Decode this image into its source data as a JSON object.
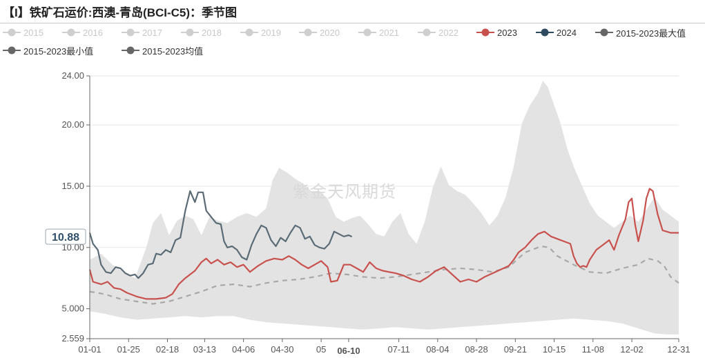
{
  "title": "【I】铁矿石运价:西澳-青岛(BCI-C5)：季节图",
  "watermark": "紫金天风期货",
  "legend": [
    {
      "label": "2015",
      "color": "#cfcfcf",
      "active": false
    },
    {
      "label": "2016",
      "color": "#cfcfcf",
      "active": false
    },
    {
      "label": "2017",
      "color": "#cfcfcf",
      "active": false
    },
    {
      "label": "2018",
      "color": "#cfcfcf",
      "active": false
    },
    {
      "label": "2019",
      "color": "#cfcfcf",
      "active": false
    },
    {
      "label": "2020",
      "color": "#cfcfcf",
      "active": false
    },
    {
      "label": "2021",
      "color": "#cfcfcf",
      "active": false
    },
    {
      "label": "2022",
      "color": "#cfcfcf",
      "active": false
    },
    {
      "label": "2023",
      "color": "#c8504d",
      "active": true
    },
    {
      "label": "2024",
      "color": "#2e4a5e",
      "active": true
    },
    {
      "label": "2015-2023最大值",
      "color": "#666666",
      "active": true
    },
    {
      "label": "2015-2023最小值",
      "color": "#666666",
      "active": true
    },
    {
      "label": "2015-2023均值",
      "color": "#666666",
      "active": true
    }
  ],
  "chart_data": {
    "type": "line",
    "x_unit": "day-of-year",
    "x_ticks": [
      {
        "label": "01-01",
        "day": 1
      },
      {
        "label": "01-25",
        "day": 25
      },
      {
        "label": "02-18",
        "day": 49
      },
      {
        "label": "03-13",
        "day": 72
      },
      {
        "label": "04-06",
        "day": 96
      },
      {
        "label": "04-30",
        "day": 120
      },
      {
        "label": "05",
        "day": 144
      },
      {
        "label": "06-10",
        "day": 161
      },
      {
        "label": "07-11",
        "day": 192
      },
      {
        "label": "08-04",
        "day": 216
      },
      {
        "label": "08-28",
        "day": 240
      },
      {
        "label": "09-21",
        "day": 264
      },
      {
        "label": "10-15",
        "day": 288
      },
      {
        "label": "11-08",
        "day": 312
      },
      {
        "label": "12-02",
        "day": 336
      },
      {
        "label": "12-31",
        "day": 365
      }
    ],
    "highlight_x_label": "06-10",
    "y_ticks": [
      "24.00",
      "20.00",
      "15.00",
      "10.00",
      "5.000",
      "2.559"
    ],
    "y_tick_values": [
      24,
      20,
      15,
      10,
      5,
      2.559
    ],
    "ylim": [
      2.559,
      24
    ],
    "current_value_label": "10.88",
    "band": {
      "name": "2015-2023最大值 / 2015-2023最小值",
      "max": [
        [
          1,
          9
        ],
        [
          8,
          9.5
        ],
        [
          15,
          8.6
        ],
        [
          22,
          8
        ],
        [
          29,
          7.5
        ],
        [
          36,
          10
        ],
        [
          40,
          12
        ],
        [
          45,
          12.8
        ],
        [
          50,
          11
        ],
        [
          55,
          12.2
        ],
        [
          60,
          12.6
        ],
        [
          65,
          12.3
        ],
        [
          70,
          11
        ],
        [
          75,
          12.5
        ],
        [
          80,
          12.2
        ],
        [
          86,
          12
        ],
        [
          92,
          12.5
        ],
        [
          98,
          12.8
        ],
        [
          104,
          12.5
        ],
        [
          110,
          13.2
        ],
        [
          114,
          15.5
        ],
        [
          118,
          16.5
        ],
        [
          123,
          16.1
        ],
        [
          128,
          15.6
        ],
        [
          133,
          15.2
        ],
        [
          138,
          14.6
        ],
        [
          143,
          14.6
        ],
        [
          148,
          14
        ],
        [
          153,
          12.5
        ],
        [
          158,
          12.1
        ],
        [
          163,
          12.4
        ],
        [
          168,
          12.6
        ],
        [
          173,
          11.9
        ],
        [
          178,
          11.1
        ],
        [
          183,
          10.9
        ],
        [
          188,
          12.1
        ],
        [
          193,
          12.8
        ],
        [
          198,
          11.1
        ],
        [
          203,
          10.3
        ],
        [
          208,
          12.1
        ],
        [
          213,
          14.9
        ],
        [
          218,
          16.6
        ],
        [
          223,
          15.1
        ],
        [
          228,
          14.6
        ],
        [
          233,
          14.3
        ],
        [
          238,
          13.6
        ],
        [
          243,
          12.8
        ],
        [
          248,
          11.8
        ],
        [
          253,
          12.6
        ],
        [
          258,
          14.1
        ],
        [
          263,
          16.6
        ],
        [
          268,
          20.1
        ],
        [
          273,
          21.6
        ],
        [
          278,
          22.6
        ],
        [
          281,
          23.6
        ],
        [
          284,
          23.1
        ],
        [
          288,
          21.6
        ],
        [
          292,
          20.1
        ],
        [
          296,
          18.1
        ],
        [
          300,
          16.6
        ],
        [
          305,
          15.1
        ],
        [
          310,
          13.6
        ],
        [
          315,
          12.6
        ],
        [
          320,
          12.1
        ],
        [
          325,
          11.6
        ],
        [
          330,
          12.1
        ],
        [
          335,
          12.6
        ],
        [
          340,
          12.1
        ],
        [
          345,
          13.1
        ],
        [
          350,
          14.1
        ],
        [
          355,
          13.1
        ],
        [
          360,
          12.6
        ],
        [
          365,
          12.1
        ]
      ],
      "min": [
        [
          1,
          4.8
        ],
        [
          10,
          4.6
        ],
        [
          20,
          4.3
        ],
        [
          30,
          4.1
        ],
        [
          40,
          4.2
        ],
        [
          50,
          4.3
        ],
        [
          60,
          4.4
        ],
        [
          70,
          4.3
        ],
        [
          80,
          4.4
        ],
        [
          90,
          4.4
        ],
        [
          100,
          4.1
        ],
        [
          110,
          3.9
        ],
        [
          120,
          3.8
        ],
        [
          130,
          3.7
        ],
        [
          140,
          3.6
        ],
        [
          150,
          3.5
        ],
        [
          160,
          3.4
        ],
        [
          170,
          3.3
        ],
        [
          180,
          3.4
        ],
        [
          190,
          3.5
        ],
        [
          200,
          3.4
        ],
        [
          210,
          3.3
        ],
        [
          220,
          3.4
        ],
        [
          230,
          3.5
        ],
        [
          240,
          3.6
        ],
        [
          250,
          3.7
        ],
        [
          260,
          3.8
        ],
        [
          270,
          3.9
        ],
        [
          280,
          4.0
        ],
        [
          290,
          4.1
        ],
        [
          300,
          4.2
        ],
        [
          310,
          4.1
        ],
        [
          320,
          4.0
        ],
        [
          330,
          3.8
        ],
        [
          340,
          3.4
        ],
        [
          350,
          3.0
        ],
        [
          358,
          2.9
        ],
        [
          365,
          2.9
        ]
      ]
    },
    "series": [
      {
        "name": "2015-2023均值",
        "style": "dashed",
        "color": "#a8a8a8",
        "points": [
          [
            1,
            6.4
          ],
          [
            10,
            6.2
          ],
          [
            20,
            5.8
          ],
          [
            30,
            5.6
          ],
          [
            40,
            5.4
          ],
          [
            50,
            5.6
          ],
          [
            60,
            6.0
          ],
          [
            70,
            6.4
          ],
          [
            80,
            6.9
          ],
          [
            90,
            7.0
          ],
          [
            100,
            6.8
          ],
          [
            110,
            7.1
          ],
          [
            120,
            7.3
          ],
          [
            130,
            7.4
          ],
          [
            140,
            7.6
          ],
          [
            150,
            7.9
          ],
          [
            160,
            7.8
          ],
          [
            170,
            7.6
          ],
          [
            180,
            7.5
          ],
          [
            190,
            7.6
          ],
          [
            200,
            7.8
          ],
          [
            210,
            8.0
          ],
          [
            220,
            8.2
          ],
          [
            230,
            8.3
          ],
          [
            240,
            8.2
          ],
          [
            250,
            8.0
          ],
          [
            260,
            8.4
          ],
          [
            270,
            9.6
          ],
          [
            280,
            10.1
          ],
          [
            285,
            10.0
          ],
          [
            290,
            9.3
          ],
          [
            300,
            8.6
          ],
          [
            310,
            8.0
          ],
          [
            320,
            7.9
          ],
          [
            330,
            8.3
          ],
          [
            340,
            8.6
          ],
          [
            346,
            9.1
          ],
          [
            352,
            8.9
          ],
          [
            356,
            8.5
          ],
          [
            360,
            7.6
          ],
          [
            365,
            7.1
          ]
        ]
      },
      {
        "name": "2023",
        "style": "solid",
        "color": "#c8504d",
        "points": [
          [
            1,
            8.2
          ],
          [
            3,
            7.2
          ],
          [
            8,
            7.0
          ],
          [
            12,
            7.2
          ],
          [
            16,
            6.7
          ],
          [
            20,
            6.6
          ],
          [
            24,
            6.3
          ],
          [
            30,
            6.0
          ],
          [
            36,
            5.8
          ],
          [
            42,
            5.8
          ],
          [
            48,
            5.9
          ],
          [
            52,
            6.2
          ],
          [
            56,
            7.0
          ],
          [
            60,
            7.5
          ],
          [
            66,
            8.1
          ],
          [
            70,
            8.8
          ],
          [
            73,
            9.1
          ],
          [
            76,
            8.7
          ],
          [
            80,
            9.0
          ],
          [
            84,
            8.6
          ],
          [
            88,
            8.8
          ],
          [
            92,
            8.4
          ],
          [
            96,
            8.6
          ],
          [
            100,
            8.0
          ],
          [
            105,
            8.5
          ],
          [
            110,
            8.9
          ],
          [
            115,
            9.1
          ],
          [
            120,
            9.0
          ],
          [
            124,
            9.3
          ],
          [
            128,
            9.0
          ],
          [
            132,
            8.6
          ],
          [
            136,
            8.3
          ],
          [
            140,
            8.6
          ],
          [
            144,
            8.9
          ],
          [
            148,
            8.4
          ],
          [
            150,
            7.2
          ],
          [
            154,
            7.3
          ],
          [
            158,
            8.6
          ],
          [
            162,
            8.6
          ],
          [
            166,
            8.3
          ],
          [
            170,
            8.0
          ],
          [
            174,
            8.8
          ],
          [
            178,
            8.3
          ],
          [
            182,
            8.1
          ],
          [
            186,
            8.0
          ],
          [
            190,
            7.9
          ],
          [
            195,
            7.7
          ],
          [
            200,
            7.4
          ],
          [
            205,
            7.2
          ],
          [
            210,
            7.6
          ],
          [
            215,
            8.1
          ],
          [
            220,
            8.4
          ],
          [
            225,
            7.8
          ],
          [
            230,
            7.2
          ],
          [
            235,
            7.4
          ],
          [
            240,
            7.2
          ],
          [
            245,
            7.6
          ],
          [
            250,
            7.9
          ],
          [
            255,
            8.2
          ],
          [
            260,
            8.5
          ],
          [
            263,
            9.0
          ],
          [
            266,
            9.6
          ],
          [
            270,
            10.0
          ],
          [
            274,
            10.6
          ],
          [
            278,
            11.1
          ],
          [
            282,
            11.3
          ],
          [
            286,
            10.9
          ],
          [
            290,
            10.7
          ],
          [
            294,
            10.5
          ],
          [
            298,
            10.3
          ],
          [
            300,
            9.3
          ],
          [
            302,
            8.7
          ],
          [
            304,
            8.4
          ],
          [
            306,
            8.5
          ],
          [
            308,
            8.4
          ],
          [
            310,
            9.0
          ],
          [
            314,
            9.8
          ],
          [
            318,
            10.2
          ],
          [
            322,
            10.6
          ],
          [
            325,
            9.8
          ],
          [
            328,
            11.0
          ],
          [
            332,
            12.3
          ],
          [
            334,
            13.7
          ],
          [
            336,
            14.0
          ],
          [
            338,
            11.9
          ],
          [
            340,
            10.5
          ],
          [
            343,
            12.2
          ],
          [
            345,
            14.0
          ],
          [
            347,
            14.8
          ],
          [
            349,
            14.6
          ],
          [
            352,
            12.7
          ],
          [
            355,
            11.4
          ],
          [
            360,
            11.2
          ],
          [
            365,
            11.2
          ]
        ]
      },
      {
        "name": "2024",
        "style": "solid",
        "color": "#5b6b75",
        "points": [
          [
            1,
            11.2
          ],
          [
            3,
            10.3
          ],
          [
            6,
            9.8
          ],
          [
            8,
            8.6
          ],
          [
            11,
            8.0
          ],
          [
            14,
            7.9
          ],
          [
            17,
            8.4
          ],
          [
            20,
            8.3
          ],
          [
            23,
            7.9
          ],
          [
            26,
            7.7
          ],
          [
            29,
            7.8
          ],
          [
            31,
            7.5
          ],
          [
            34,
            7.9
          ],
          [
            37,
            8.6
          ],
          [
            40,
            8.7
          ],
          [
            42,
            9.5
          ],
          [
            45,
            9.4
          ],
          [
            48,
            9.8
          ],
          [
            51,
            9.6
          ],
          [
            54,
            10.6
          ],
          [
            57,
            10.8
          ],
          [
            60,
            13.0
          ],
          [
            63,
            14.6
          ],
          [
            66,
            13.7
          ],
          [
            68,
            14.5
          ],
          [
            71,
            14.5
          ],
          [
            73,
            13.0
          ],
          [
            76,
            12.5
          ],
          [
            79,
            12.0
          ],
          [
            82,
            11.9
          ],
          [
            84,
            10.5
          ],
          [
            86,
            10.0
          ],
          [
            89,
            10.1
          ],
          [
            92,
            9.8
          ],
          [
            95,
            9.2
          ],
          [
            98,
            9.0
          ],
          [
            101,
            10.2
          ],
          [
            104,
            11.1
          ],
          [
            107,
            11.8
          ],
          [
            110,
            11.6
          ],
          [
            113,
            10.6
          ],
          [
            116,
            10.1
          ],
          [
            119,
            10.8
          ],
          [
            122,
            10.5
          ],
          [
            125,
            11.2
          ],
          [
            128,
            11.8
          ],
          [
            131,
            11.6
          ],
          [
            134,
            10.7
          ],
          [
            137,
            10.9
          ],
          [
            140,
            10.2
          ],
          [
            143,
            10.0
          ],
          [
            146,
            9.9
          ],
          [
            149,
            10.3
          ],
          [
            152,
            11.3
          ],
          [
            155,
            11.1
          ],
          [
            158,
            10.9
          ],
          [
            161,
            11.0
          ],
          [
            163,
            10.88
          ]
        ]
      }
    ],
    "xlabel": "",
    "ylabel": "",
    "grid": "horizontal",
    "legend_position": "top"
  }
}
